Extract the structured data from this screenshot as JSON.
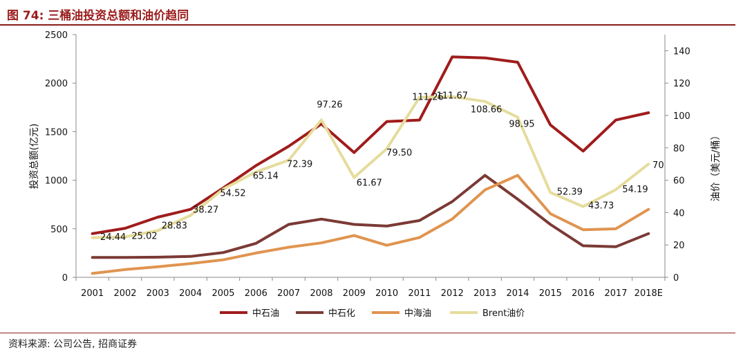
{
  "figure": {
    "title": "图 74:  三桶油投资总额和油价趋同",
    "source": "资料来源:  公司公告,  招商证券"
  },
  "colors": {
    "title": "#9b1d1d",
    "rule": "#8b1a1a"
  },
  "chart_data": {
    "type": "line",
    "categories": [
      "2001",
      "2002",
      "2003",
      "2004",
      "2005",
      "2006",
      "2007",
      "2008",
      "2009",
      "2010",
      "2011",
      "2012",
      "2013",
      "2014",
      "2015",
      "2016",
      "2017",
      "2018E"
    ],
    "y_left": {
      "label": "投资总额(亿元)",
      "lim": [
        0,
        2500
      ],
      "ticks": [
        "0",
        "500",
        "1000",
        "1500",
        "2000",
        "2500"
      ]
    },
    "y_right": {
      "label": "油价（美元/桶）",
      "lim": [
        0,
        150
      ],
      "ticks": [
        "0",
        "20",
        "40",
        "60",
        "80",
        "100",
        "120",
        "140"
      ]
    },
    "grid": false,
    "legend_position": "bottom",
    "series": [
      {
        "name": "中石油",
        "axis": "left",
        "color": "#a01c1c",
        "values": [
          450,
          505,
          620,
          700,
          920,
          1150,
          1350,
          1580,
          1285,
          1605,
          1620,
          2270,
          2260,
          2215,
          1570,
          1300,
          1620,
          1695
        ]
      },
      {
        "name": "中石化",
        "axis": "left",
        "color": "#7b3a35",
        "values": [
          205,
          205,
          207,
          215,
          255,
          350,
          545,
          600,
          545,
          528,
          585,
          780,
          1050,
          805,
          545,
          325,
          315,
          450
        ]
      },
      {
        "name": "中海油",
        "axis": "left",
        "color": "#e0944f",
        "values": [
          40,
          80,
          108,
          142,
          180,
          250,
          310,
          355,
          430,
          330,
          410,
          600,
          900,
          1050,
          655,
          490,
          500,
          700
        ]
      },
      {
        "name": "Brent油价",
        "axis": "right",
        "color": "#e6dc9c",
        "values": [
          24.44,
          25.02,
          28.83,
          38.27,
          54.52,
          65.14,
          72.39,
          97.26,
          61.67,
          79.5,
          111.26,
          111.67,
          108.66,
          98.95,
          52.39,
          43.73,
          54.19,
          70
        ],
        "labels": [
          "24.44",
          "25.02",
          "28.83",
          "38.27",
          "54.52",
          "65.14",
          "72.39",
          "97.26",
          "61.67",
          "79.50",
          "111.26",
          "111.67",
          "108.66",
          "98.95",
          "52.39",
          "43.73",
          "54.19",
          "70"
        ]
      }
    ]
  }
}
